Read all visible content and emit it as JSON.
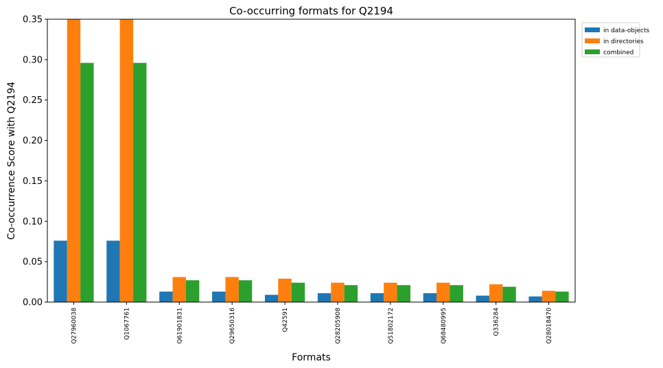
{
  "chart_data": {
    "type": "bar",
    "title": "Co-occurring formats for Q2194",
    "xlabel": "Formats",
    "ylabel": "Co-occurrence Score with Q2194",
    "ylim": [
      0,
      0.35
    ],
    "yticks": [
      "0.00",
      "0.05",
      "0.10",
      "0.15",
      "0.20",
      "0.25",
      "0.30",
      "0.35"
    ],
    "grid": false,
    "legend_position": "outside-top-right",
    "categories": [
      "Q27960038",
      "Q1067761",
      "Q61901831",
      "Q29650316",
      "Q42591",
      "Q28205908",
      "Q51802172",
      "Q68480995",
      "Q336284",
      "Q28018470"
    ],
    "series": [
      {
        "name": "in data-objects",
        "color": "#1f77b4",
        "values": [
          0.076,
          0.076,
          0.013,
          0.013,
          0.009,
          0.011,
          0.011,
          0.011,
          0.008,
          0.007
        ]
      },
      {
        "name": "in directories",
        "color": "#ff7f0e",
        "values": [
          0.35,
          0.35,
          0.031,
          0.031,
          0.029,
          0.024,
          0.024,
          0.024,
          0.022,
          0.014
        ]
      },
      {
        "name": "combined",
        "color": "#2ca02c",
        "values": [
          0.296,
          0.296,
          0.027,
          0.027,
          0.024,
          0.021,
          0.021,
          0.021,
          0.019,
          0.013
        ]
      }
    ]
  }
}
